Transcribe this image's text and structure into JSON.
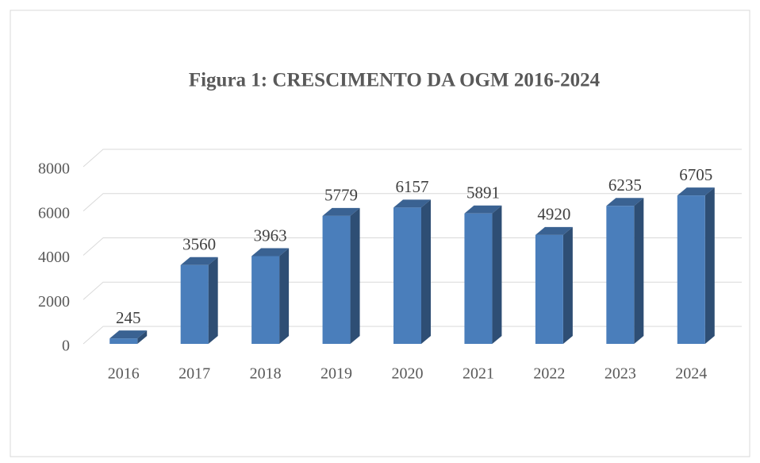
{
  "chart_data": {
    "type": "bar3d",
    "title": "Figura 1: CRESCIMENTO DA OGM 2016-2024",
    "categories": [
      "2016",
      "2017",
      "2018",
      "2019",
      "2020",
      "2021",
      "2022",
      "2023",
      "2024"
    ],
    "values": [
      245,
      3560,
      3963,
      5779,
      6157,
      5891,
      4920,
      6235,
      6705
    ],
    "color": "#4a7ebb",
    "ylim": [
      0,
      8000
    ],
    "yticks": [
      0,
      2000,
      4000,
      6000,
      8000
    ],
    "grid": true
  }
}
